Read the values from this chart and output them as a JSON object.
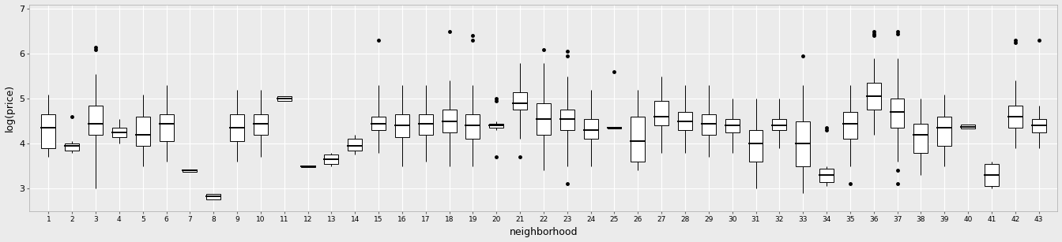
{
  "title": "",
  "xlabel": "neighborhood",
  "ylabel": "log(price)",
  "ylim": [
    2.5,
    7.1
  ],
  "yticks": [
    3,
    4,
    5,
    6,
    7
  ],
  "neighborhoods": [
    1,
    2,
    3,
    4,
    5,
    6,
    7,
    8,
    9,
    10,
    11,
    12,
    13,
    14,
    15,
    16,
    17,
    18,
    19,
    20,
    21,
    22,
    23,
    24,
    25,
    26,
    27,
    28,
    29,
    30,
    31,
    32,
    33,
    34,
    35,
    36,
    37,
    38,
    39,
    40,
    41,
    42,
    43
  ],
  "boxplot_stats": [
    {
      "n": 1,
      "q1": 3.9,
      "med": 4.35,
      "q3": 4.65,
      "wlo": 3.7,
      "whi": 5.1,
      "out": []
    },
    {
      "n": 2,
      "q1": 3.85,
      "med": 3.95,
      "q3": 4.0,
      "wlo": 3.8,
      "whi": 4.05,
      "out": [
        4.6
      ]
    },
    {
      "n": 3,
      "q1": 4.2,
      "med": 4.45,
      "q3": 4.85,
      "wlo": 3.0,
      "whi": 5.55,
      "out": [
        6.1,
        6.15
      ]
    },
    {
      "n": 4,
      "q1": 4.15,
      "med": 4.25,
      "q3": 4.35,
      "wlo": 4.0,
      "whi": 4.55,
      "out": []
    },
    {
      "n": 5,
      "q1": 3.95,
      "med": 4.2,
      "q3": 4.6,
      "wlo": 3.5,
      "whi": 5.1,
      "out": []
    },
    {
      "n": 6,
      "q1": 4.05,
      "med": 4.45,
      "q3": 4.65,
      "wlo": 3.6,
      "whi": 5.3,
      "out": []
    },
    {
      "n": 7,
      "q1": 3.38,
      "med": 3.4,
      "q3": 3.42,
      "wlo": 3.38,
      "whi": 3.42,
      "out": []
    },
    {
      "n": 8,
      "q1": 2.76,
      "med": 2.82,
      "q3": 2.88,
      "wlo": 2.76,
      "whi": 2.88,
      "out": []
    },
    {
      "n": 9,
      "q1": 4.05,
      "med": 4.35,
      "q3": 4.65,
      "wlo": 3.6,
      "whi": 5.2,
      "out": []
    },
    {
      "n": 10,
      "q1": 4.2,
      "med": 4.45,
      "q3": 4.65,
      "wlo": 3.7,
      "whi": 5.2,
      "out": []
    },
    {
      "n": 11,
      "q1": 4.95,
      "med": 5.0,
      "q3": 5.05,
      "wlo": 4.95,
      "whi": 5.05,
      "out": []
    },
    {
      "n": 12,
      "q1": 3.48,
      "med": 3.5,
      "q3": 3.52,
      "wlo": 3.48,
      "whi": 3.52,
      "out": []
    },
    {
      "n": 13,
      "q1": 3.55,
      "med": 3.65,
      "q3": 3.75,
      "wlo": 3.5,
      "whi": 3.8,
      "out": []
    },
    {
      "n": 14,
      "q1": 3.85,
      "med": 3.95,
      "q3": 4.1,
      "wlo": 3.75,
      "whi": 4.2,
      "out": []
    },
    {
      "n": 15,
      "q1": 4.3,
      "med": 4.45,
      "q3": 4.6,
      "wlo": 3.8,
      "whi": 5.3,
      "out": [
        6.3
      ]
    },
    {
      "n": 16,
      "q1": 4.15,
      "med": 4.4,
      "q3": 4.65,
      "wlo": 3.5,
      "whi": 5.3,
      "out": []
    },
    {
      "n": 17,
      "q1": 4.2,
      "med": 4.45,
      "q3": 4.65,
      "wlo": 3.6,
      "whi": 5.3,
      "out": []
    },
    {
      "n": 18,
      "q1": 4.25,
      "med": 4.5,
      "q3": 4.75,
      "wlo": 3.5,
      "whi": 5.4,
      "out": [
        6.5
      ]
    },
    {
      "n": 19,
      "q1": 4.1,
      "med": 4.4,
      "q3": 4.65,
      "wlo": 3.5,
      "whi": 5.3,
      "out": [
        6.4,
        6.3
      ]
    },
    {
      "n": 20,
      "q1": 4.35,
      "med": 4.4,
      "q3": 4.45,
      "wlo": 4.3,
      "whi": 4.5,
      "out": [
        5.0,
        4.95,
        3.7
      ]
    },
    {
      "n": 21,
      "q1": 4.75,
      "med": 4.9,
      "q3": 5.15,
      "wlo": 4.1,
      "whi": 5.8,
      "out": [
        3.7
      ]
    },
    {
      "n": 22,
      "q1": 4.2,
      "med": 4.55,
      "q3": 4.9,
      "wlo": 3.4,
      "whi": 5.8,
      "out": [
        6.1
      ]
    },
    {
      "n": 23,
      "q1": 4.3,
      "med": 4.55,
      "q3": 4.75,
      "wlo": 3.5,
      "whi": 5.5,
      "out": [
        6.05,
        5.95,
        3.1
      ]
    },
    {
      "n": 24,
      "q1": 4.1,
      "med": 4.3,
      "q3": 4.55,
      "wlo": 3.5,
      "whi": 5.2,
      "out": []
    },
    {
      "n": 25,
      "q1": 4.33,
      "med": 4.35,
      "q3": 4.38,
      "wlo": 4.33,
      "whi": 4.38,
      "out": [
        5.6
      ]
    },
    {
      "n": 26,
      "q1": 3.6,
      "med": 4.05,
      "q3": 4.6,
      "wlo": 3.4,
      "whi": 5.2,
      "out": []
    },
    {
      "n": 27,
      "q1": 4.4,
      "med": 4.6,
      "q3": 4.95,
      "wlo": 3.8,
      "whi": 5.5,
      "out": []
    },
    {
      "n": 28,
      "q1": 4.3,
      "med": 4.5,
      "q3": 4.7,
      "wlo": 3.8,
      "whi": 5.3,
      "out": []
    },
    {
      "n": 29,
      "q1": 4.2,
      "med": 4.45,
      "q3": 4.65,
      "wlo": 3.7,
      "whi": 5.3,
      "out": []
    },
    {
      "n": 30,
      "q1": 4.25,
      "med": 4.4,
      "q3": 4.55,
      "wlo": 3.8,
      "whi": 5.0,
      "out": []
    },
    {
      "n": 31,
      "q1": 3.6,
      "med": 4.0,
      "q3": 4.3,
      "wlo": 3.0,
      "whi": 5.0,
      "out": []
    },
    {
      "n": 32,
      "q1": 4.3,
      "med": 4.4,
      "q3": 4.55,
      "wlo": 3.9,
      "whi": 5.0,
      "out": []
    },
    {
      "n": 33,
      "q1": 3.5,
      "med": 4.0,
      "q3": 4.5,
      "wlo": 2.9,
      "whi": 5.3,
      "out": [
        5.95
      ]
    },
    {
      "n": 34,
      "q1": 3.15,
      "med": 3.3,
      "q3": 3.45,
      "wlo": 3.05,
      "whi": 3.5,
      "out": [
        4.3,
        4.35
      ]
    },
    {
      "n": 35,
      "q1": 4.1,
      "med": 4.45,
      "q3": 4.7,
      "wlo": 3.5,
      "whi": 5.3,
      "out": [
        3.1
      ]
    },
    {
      "n": 36,
      "q1": 4.75,
      "med": 5.05,
      "q3": 5.35,
      "wlo": 4.2,
      "whi": 5.9,
      "out": [
        6.5,
        6.45,
        6.4
      ]
    },
    {
      "n": 37,
      "q1": 4.35,
      "med": 4.7,
      "q3": 5.0,
      "wlo": 3.6,
      "whi": 5.9,
      "out": [
        6.5,
        6.45,
        3.4,
        3.1
      ]
    },
    {
      "n": 38,
      "q1": 3.8,
      "med": 4.2,
      "q3": 4.45,
      "wlo": 3.3,
      "whi": 5.0,
      "out": []
    },
    {
      "n": 39,
      "q1": 3.95,
      "med": 4.35,
      "q3": 4.6,
      "wlo": 3.5,
      "whi": 5.1,
      "out": []
    },
    {
      "n": 40,
      "q1": 4.33,
      "med": 4.38,
      "q3": 4.43,
      "wlo": 4.33,
      "whi": 4.43,
      "out": []
    },
    {
      "n": 41,
      "q1": 3.05,
      "med": 3.3,
      "q3": 3.55,
      "wlo": 3.0,
      "whi": 3.6,
      "out": []
    },
    {
      "n": 42,
      "q1": 4.35,
      "med": 4.6,
      "q3": 4.85,
      "wlo": 3.9,
      "whi": 5.4,
      "out": [
        6.3,
        6.25
      ]
    },
    {
      "n": 43,
      "q1": 4.25,
      "med": 4.4,
      "q3": 4.55,
      "wlo": 3.9,
      "whi": 4.85,
      "out": [
        6.3
      ]
    }
  ],
  "bg_color": "#ebebeb",
  "panel_bg": "#ebebeb",
  "box_facecolor": "white",
  "box_edgecolor": "black",
  "median_color": "black",
  "whisker_color": "black",
  "flier_color": "black",
  "grid_color": "white",
  "linewidth": 0.7,
  "flier_size": 2.5
}
